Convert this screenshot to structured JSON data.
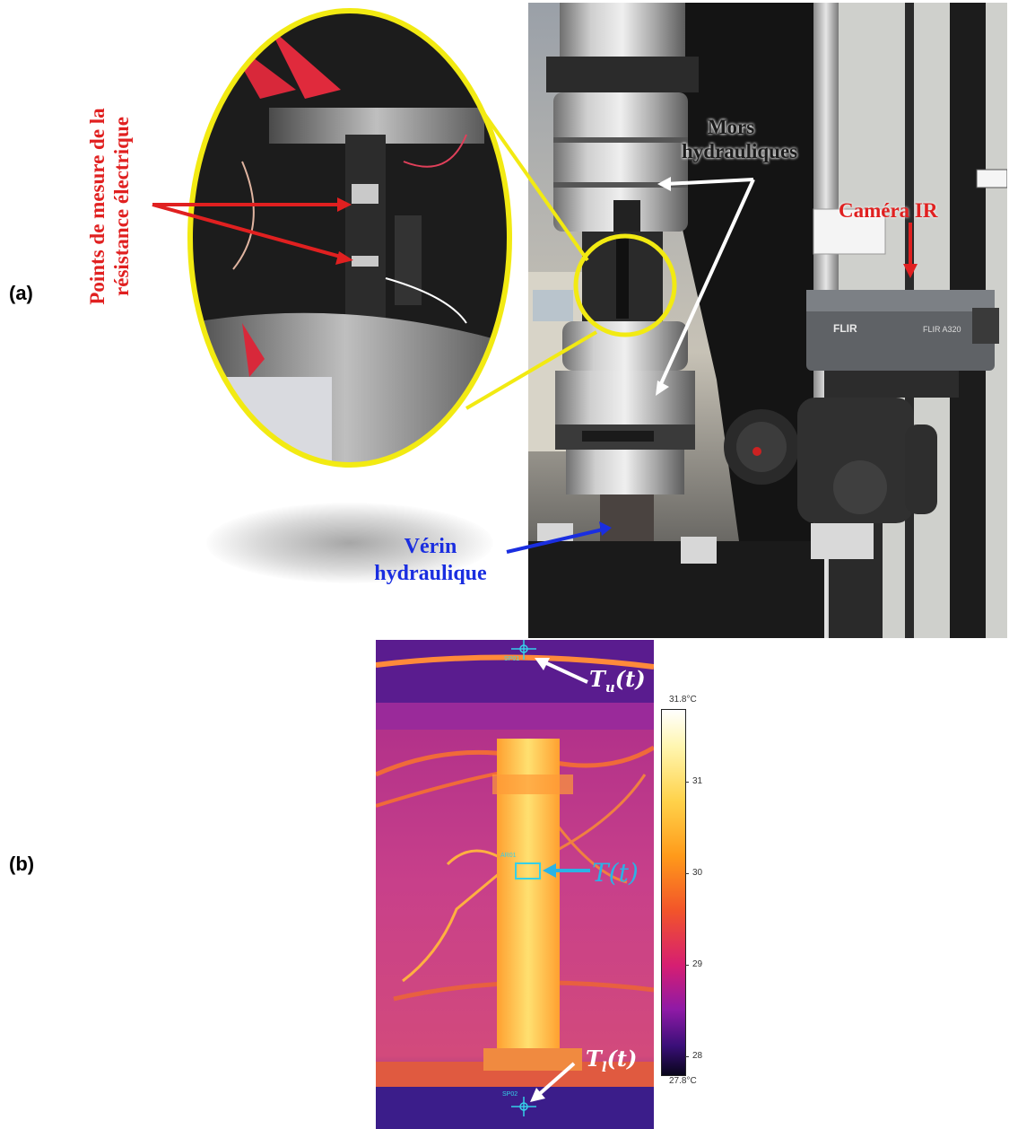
{
  "panel_a": {
    "label": "(a)",
    "annotations": {
      "measure_points": "Points de mesure de la résistance électrique",
      "measure_points_line1": "Points de mesure de la",
      "measure_points_line2": "résistance électrique",
      "jaws_line1": "Mors",
      "jaws_line2": "hydrauliques",
      "camera": "Caméra IR",
      "actuator_line1": "Vérin",
      "actuator_line2": "hydraulique",
      "camera_brand": "FLIR",
      "camera_model": "FLIR A320"
    },
    "colors": {
      "measure_points": "#e02020",
      "jaws": "#1a1a1a",
      "camera": "#e02020",
      "actuator": "#1a2ee0",
      "zoom_ellipse": "#f2ea12"
    }
  },
  "panel_b": {
    "label": "(b)",
    "markers": {
      "sp01": "SP01",
      "ar01": "AR01",
      "sp02": "SP02"
    },
    "annotations": {
      "t_upper_base": "T",
      "t_upper_sub": "u",
      "t_upper_arg": "(t)",
      "t_center": "T(t)",
      "t_lower_base": "T",
      "t_lower_sub": "l",
      "t_lower_arg": "(t)"
    },
    "colorbar": {
      "max_label": "31.8°C",
      "min_label": "27.8°C",
      "ticks": [
        "31",
        "30",
        "29",
        "28"
      ],
      "max_value": 31.8,
      "min_value": 27.8
    },
    "colors": {
      "t_center": "#2ab3e6",
      "marker": "#35d0e8"
    }
  }
}
